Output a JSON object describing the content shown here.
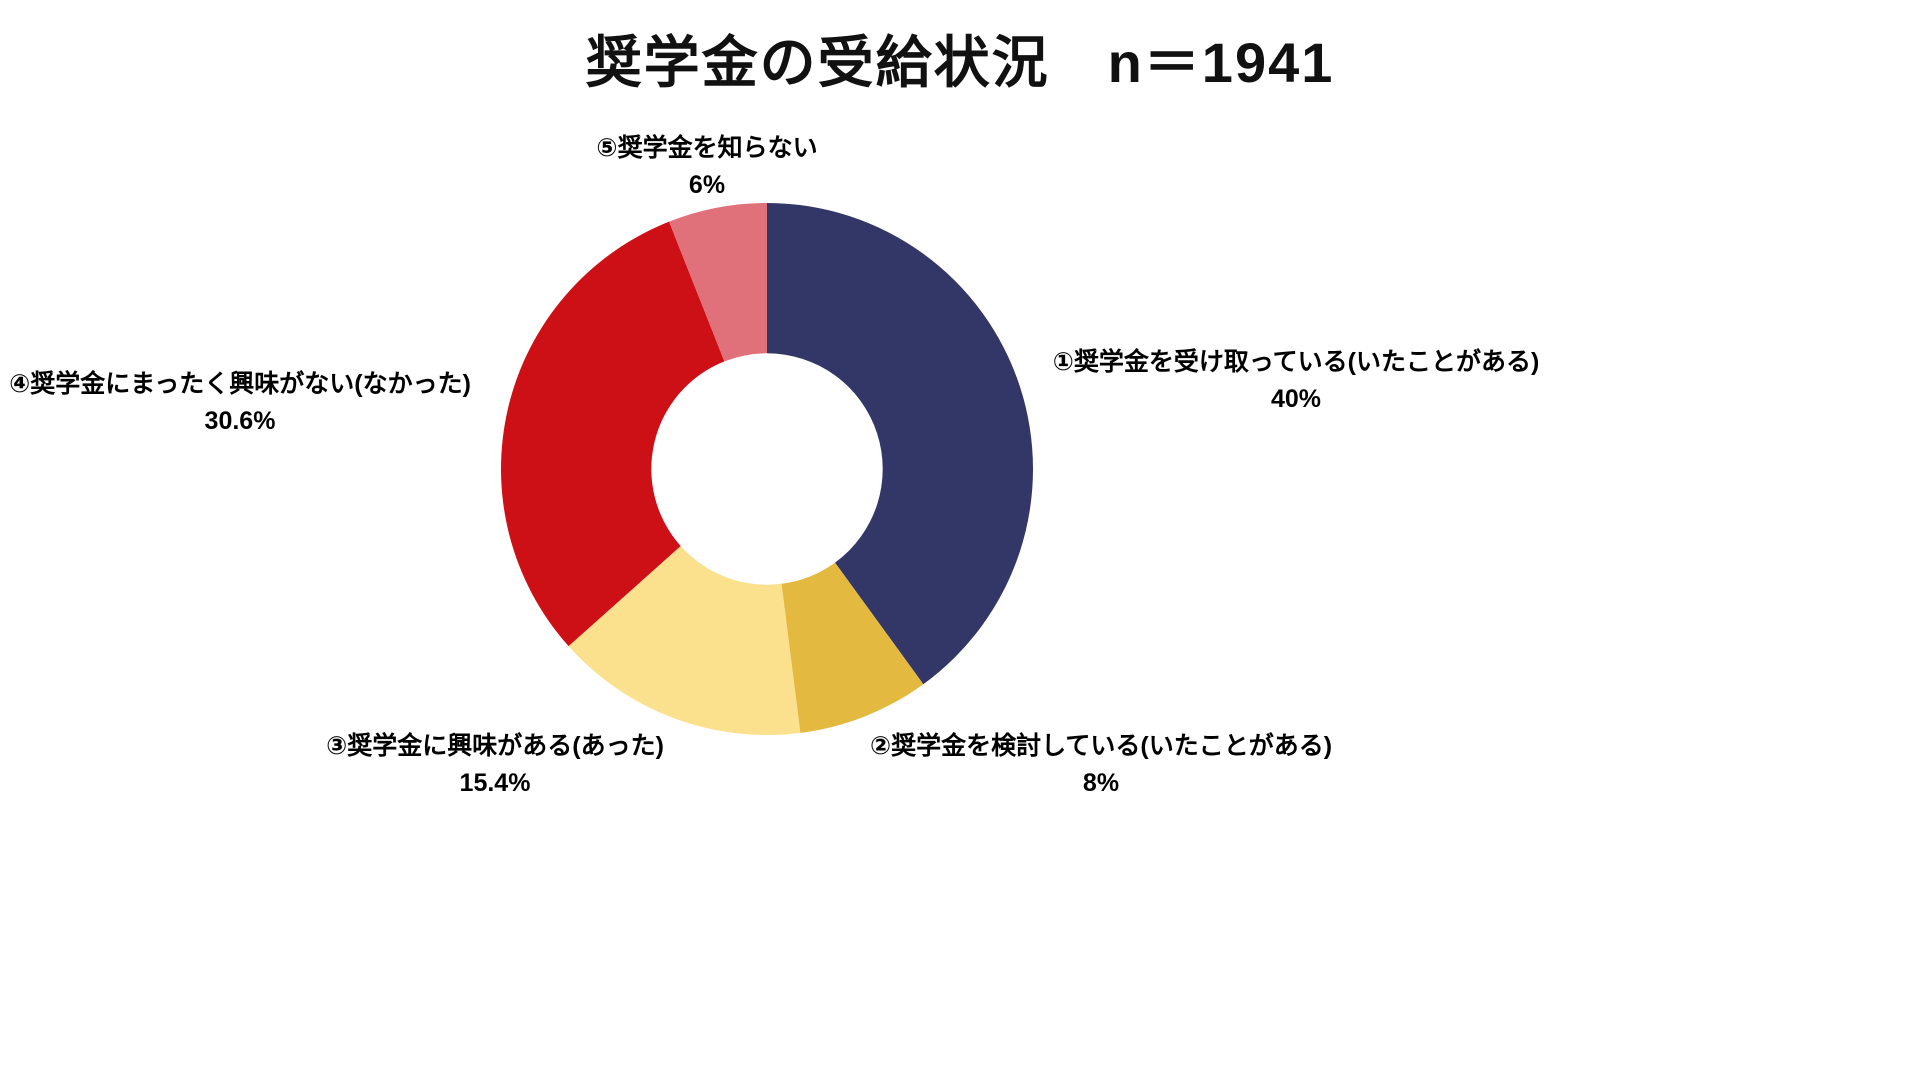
{
  "page": {
    "background_color": "#ffffff"
  },
  "chart_data": {
    "type": "pie",
    "subtype": "donut",
    "title": "奨学金の受給状況　n＝1941",
    "n": 1941,
    "categories": [
      "①奨学金を受け取っている(いたことがある)",
      "②奨学金を検討している(いたことがある)",
      "③奨学金に興味がある(あった)",
      "④奨学金にまったく興味がない(なかった)",
      "⑤奨学金を知らない"
    ],
    "values": [
      40,
      8,
      15.4,
      30.6,
      6
    ],
    "value_labels": [
      "40%",
      "8%",
      "15.4%",
      "30.6%",
      "6%"
    ],
    "colors": [
      "#323768",
      "#e3b940",
      "#fbe08e",
      "#cc1016",
      "#e0717a"
    ],
    "start_angle_deg": -90,
    "direction": "clockwise",
    "inner_radius_ratio": 0.435,
    "legend_position": "outside-labels",
    "grid": false
  }
}
